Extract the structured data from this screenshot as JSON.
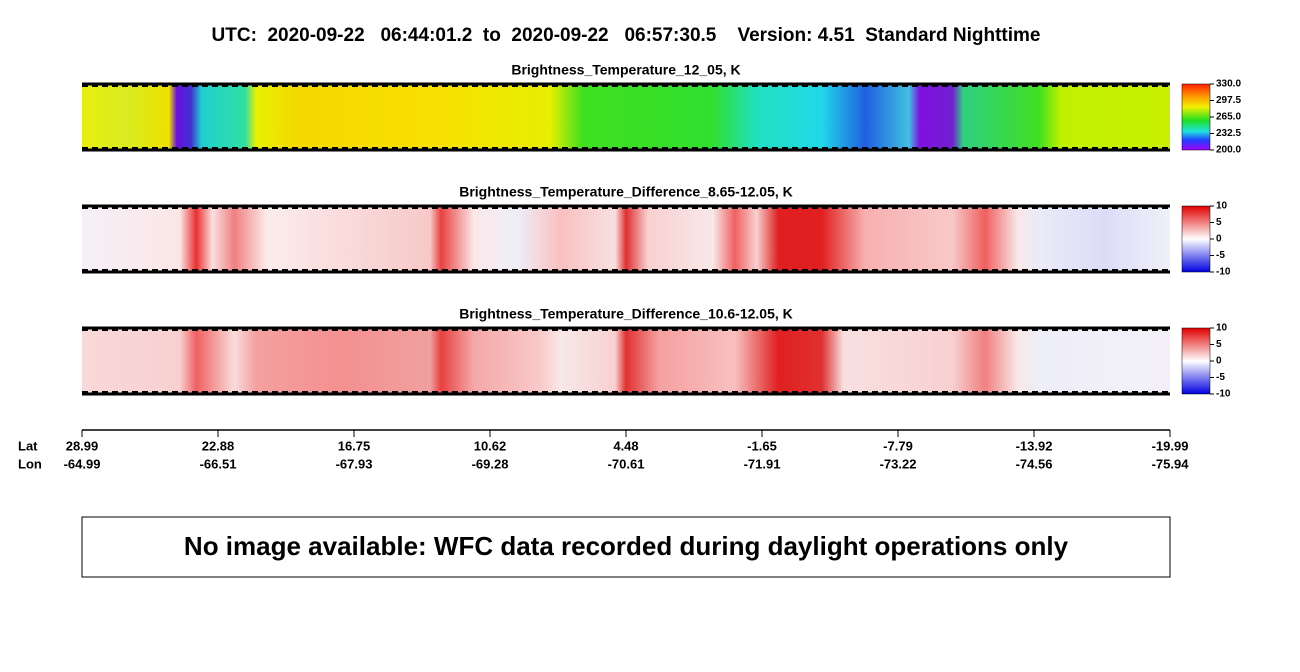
{
  "header": {
    "title": "UTC:  2020-09-22   06:44:01.2  to  2020-09-22   06:57:30.5    Version: 4.51  Standard Nighttime"
  },
  "panels": [
    {
      "title": "Brightness_Temperature_12_05, K",
      "colorbar": {
        "ticks": [
          "330.0",
          "297.5",
          "265.0",
          "232.5",
          "200.0"
        ]
      }
    },
    {
      "title": "Brightness_Temperature_Difference_8.65-12.05, K",
      "colorbar": {
        "ticks": [
          "10",
          "5",
          "0",
          "-5",
          "-10"
        ]
      }
    },
    {
      "title": "Brightness_Temperature_Difference_10.6-12.05, K",
      "colorbar": {
        "ticks": [
          "10",
          "5",
          "0",
          "-5",
          "-10"
        ]
      }
    }
  ],
  "axis": {
    "lat_label": "Lat",
    "lon_label": "Lon",
    "lat": [
      "28.99",
      "22.88",
      "16.75",
      "10.62",
      "4.48",
      "-1.65",
      "-7.79",
      "-13.92",
      "-19.99"
    ],
    "lon": [
      "-64.99",
      "-66.51",
      "-67.93",
      "-69.28",
      "-70.61",
      "-71.91",
      "-73.22",
      "-74.56",
      "-75.94"
    ]
  },
  "message": "No image available: WFC data recorded during daylight operations only"
}
